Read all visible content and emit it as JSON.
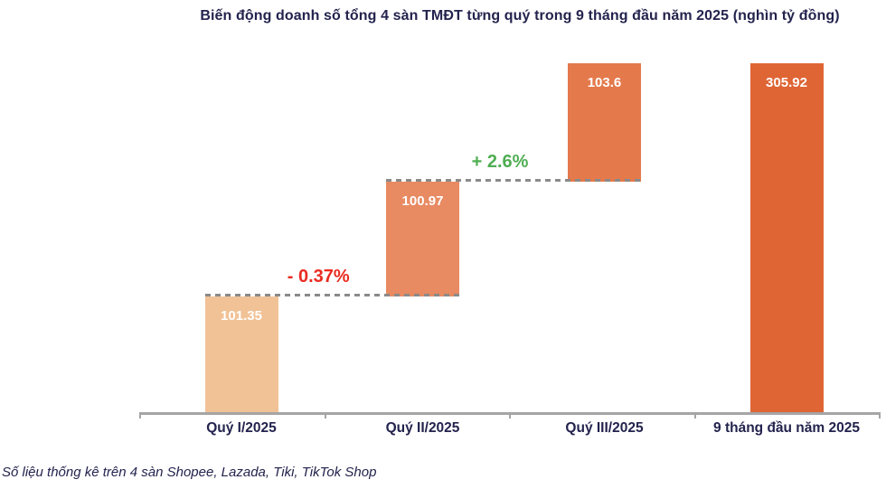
{
  "title": "Biến động doanh số tổng 4 sàn TMĐT từng quý trong 9 tháng đầu năm 2025 (nghìn tỷ đồng)",
  "source_note": "Số liệu thống kê trên 4 sàn Shopee, Lazada, Tiki, TikTok Shop",
  "colors": {
    "text_navy": "#23234E",
    "axis_gray": "#A5A5A5",
    "connector_gray": "#8A8A8A",
    "value_label_white": "#FFFFFF"
  },
  "chart_data": {
    "type": "bar",
    "subtype": "waterfall",
    "title": "Biến động doanh số tổng 4 sàn TMĐT từng quý trong 9 tháng đầu năm 2025 (nghìn tỷ đồng)",
    "unit": "nghìn tỷ đồng",
    "categories": [
      "Quý I/2025",
      "Quý II/2025",
      "Quý III/2025",
      "9 tháng đầu năm 2025"
    ],
    "bars": [
      {
        "category": "Quý I/2025",
        "value": 101.35,
        "start": 0,
        "label": "101.35",
        "color": "#F1C296"
      },
      {
        "category": "Quý II/2025",
        "value": 100.97,
        "start": 101.35,
        "label": "100.97",
        "color": "#E88A62"
      },
      {
        "category": "Quý III/2025",
        "value": 103.6,
        "start": 202.32,
        "label": "103.6",
        "color": "#E4794B"
      },
      {
        "category": "9 tháng đầu năm 2025",
        "value": 305.92,
        "start": 0,
        "label": "305.92",
        "color": "#DF6535"
      }
    ],
    "connectors": [
      {
        "level": 101.35,
        "change_label": "- 0.37%",
        "change_color": "#EA2B20"
      },
      {
        "level": 202.32,
        "change_label": "+ 2.6%",
        "change_color": "#4FAE52"
      }
    ],
    "ylim": [
      0,
      305.92
    ],
    "grid": false,
    "legend": false,
    "axis": "x-only"
  }
}
